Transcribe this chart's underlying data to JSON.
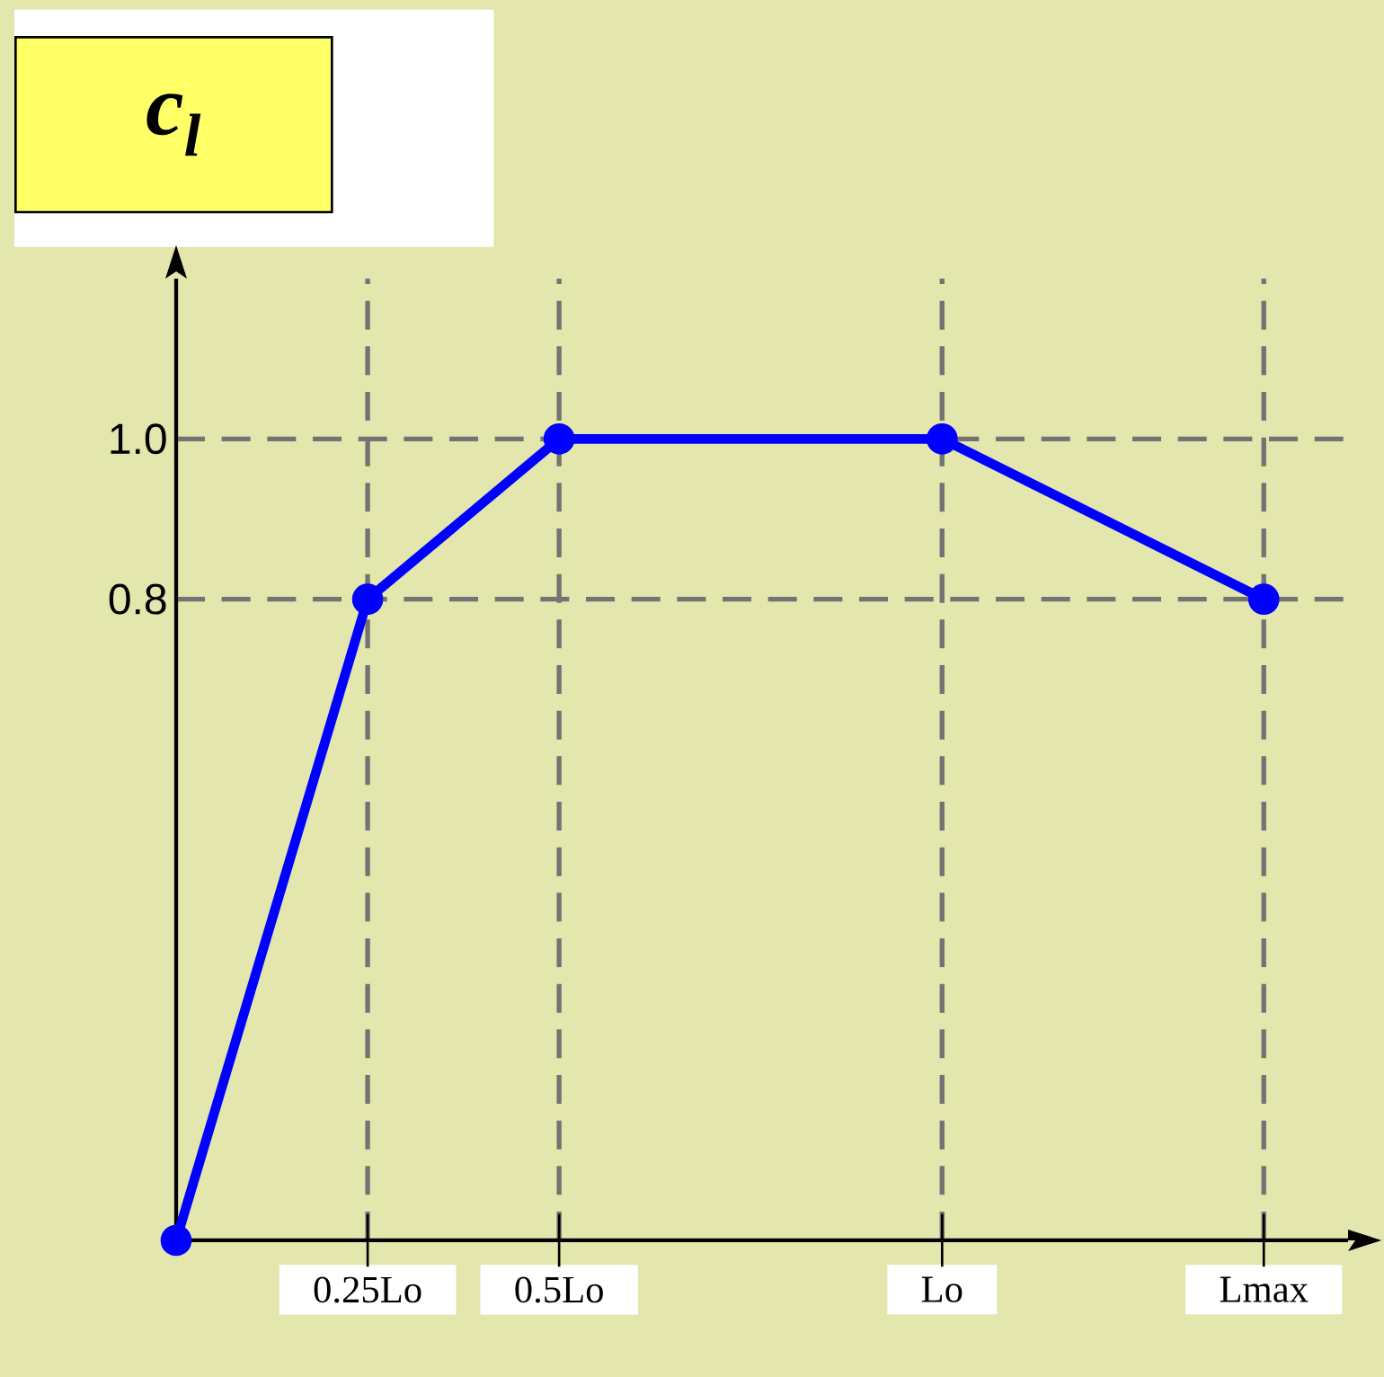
{
  "chart_data": {
    "type": "line",
    "title": "c$_{l}$",
    "x": [
      0,
      0.25,
      0.5,
      1,
      1.42
    ],
    "series": [
      {
        "color": "#0000ff",
        "values": [
          0,
          0.8,
          1.0,
          1.0,
          0.8
        ]
      }
    ],
    "xlim": [
      0,
      1.53
    ],
    "ylim": [
      0,
      1.2
    ],
    "xticks": [
      {
        "value": 0.25,
        "label": "0.25Lo"
      },
      {
        "value": 0.5,
        "label": "0.5Lo"
      },
      {
        "value": 1,
        "label": "Lo"
      },
      {
        "value": 1.42,
        "label": "Lmax"
      }
    ],
    "yticks": [
      {
        "value": 0.8,
        "label": "0.8"
      },
      {
        "value": 1.0,
        "label": "1.0"
      }
    ],
    "grid": true,
    "marker": "circle",
    "line_style": "solid"
  }
}
